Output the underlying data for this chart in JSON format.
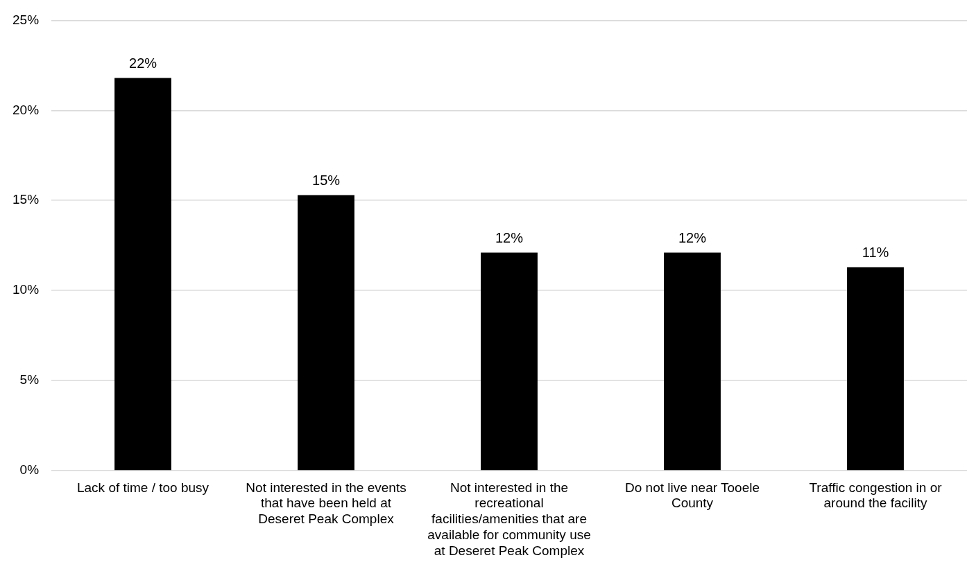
{
  "chart_data": {
    "type": "bar",
    "categories": [
      "Lack of time / too busy",
      "Not interested in the events that have been held at Deseret Peak Complex",
      "Not interested in the recreational facilities/amenities that are available for community use at Deseret Peak Complex",
      "Do not live near Tooele County",
      "Traffic congestion in or around the facility"
    ],
    "values": [
      21.8,
      15.3,
      12.1,
      12.1,
      11.3
    ],
    "value_labels": [
      "22%",
      "15%",
      "12%",
      "12%",
      "11%"
    ],
    "color": "#000000",
    "ylim": [
      0,
      25
    ],
    "yticks": [
      {
        "value": 0,
        "label": "0%"
      },
      {
        "value": 5,
        "label": "5%"
      },
      {
        "value": 10,
        "label": "10%"
      },
      {
        "value": 15,
        "label": "15%"
      },
      {
        "value": 20,
        "label": "20%"
      },
      {
        "value": 25,
        "label": "25%"
      }
    ],
    "grid": "y",
    "legend": false
  }
}
